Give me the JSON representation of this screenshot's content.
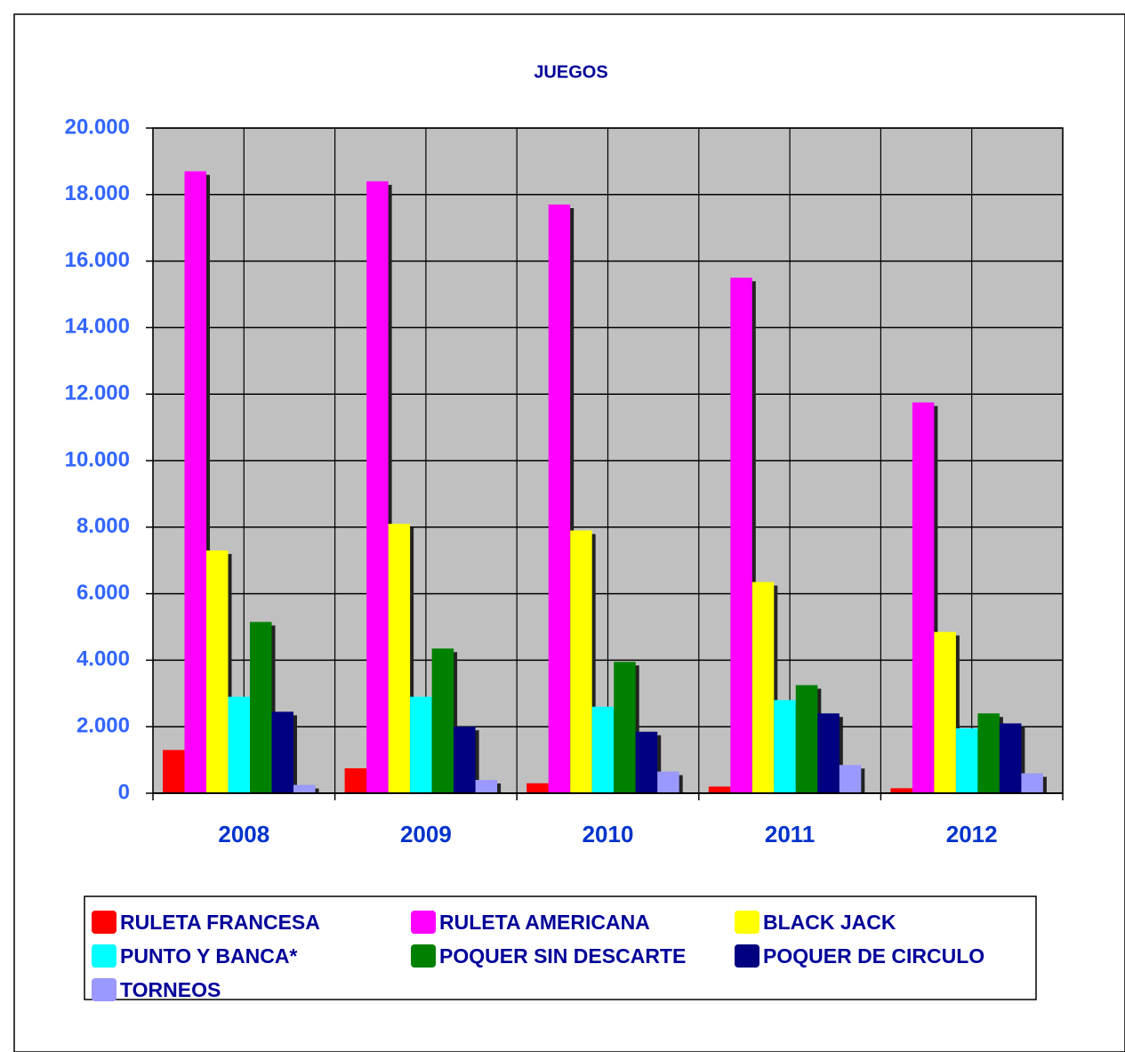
{
  "chart_data": {
    "type": "bar",
    "title": "JUEGOS",
    "categories": [
      "2008",
      "2009",
      "2010",
      "2011",
      "2012"
    ],
    "series": [
      {
        "name": "RULETA FRANCESA",
        "color": "#ff0000",
        "values": [
          1300,
          750,
          300,
          200,
          150
        ]
      },
      {
        "name": "RULETA AMERICANA",
        "color": "#ff00ff",
        "values": [
          18700,
          18400,
          17700,
          15500,
          11750
        ]
      },
      {
        "name": "BLACK JACK",
        "color": "#ffff00",
        "values": [
          7300,
          8100,
          7900,
          6350,
          4850
        ]
      },
      {
        "name": "PUNTO Y BANCA*",
        "color": "#00ffff",
        "values": [
          2900,
          2900,
          2600,
          2800,
          1950
        ]
      },
      {
        "name": "POQUER SIN DESCARTE",
        "color": "#008000",
        "values": [
          5150,
          4350,
          3950,
          3250,
          2400
        ]
      },
      {
        "name": "POQUER DE CIRCULO",
        "color": "#000080",
        "values": [
          2450,
          2000,
          1850,
          2400,
          2100
        ]
      },
      {
        "name": "TORNEOS",
        "color": "#9999ff",
        "values": [
          250,
          400,
          650,
          850,
          600
        ]
      }
    ],
    "ylim": [
      0,
      20000
    ],
    "yticks": [
      0,
      {
        "value": 2000,
        "label": "2.000"
      },
      {
        "value": 4000,
        "label": "4.000"
      },
      {
        "value": 6000,
        "label": "6.000"
      },
      {
        "value": 8000,
        "label": "8.000"
      },
      {
        "value": 10000,
        "label": "10.000"
      },
      {
        "value": 12000,
        "label": "12.000"
      },
      {
        "value": 14000,
        "label": "14.000"
      },
      {
        "value": 16000,
        "label": "16.000"
      },
      {
        "value": 18000,
        "label": "18.000"
      },
      {
        "value": 20000,
        "label": "20.000"
      }
    ],
    "grid": true,
    "legend": "bottom"
  }
}
